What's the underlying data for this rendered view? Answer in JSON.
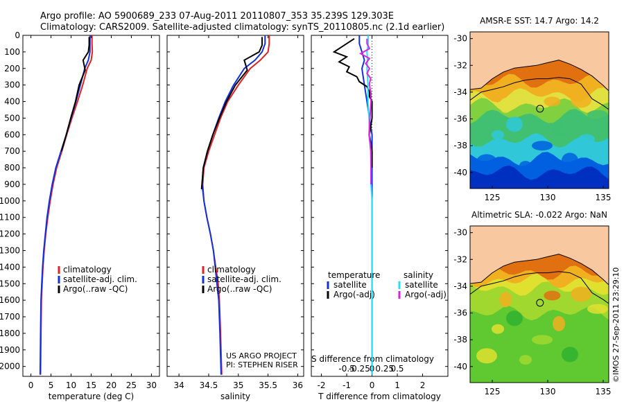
{
  "header": {
    "line1": "Argo profile: AO 5900689_233 07-Aug-2011 20110807_353 35.239S 129.303E",
    "line2": "Climatology: CARS2009. Satellite-adjusted climatology: synTS_20110805.nc (2.1d earlier)"
  },
  "credits": {
    "project": "US ARGO PROJECT",
    "pi": "PI: STEPHEN RISER",
    "stamp": "©IMOS 27-Sep-2011 23:29:10"
  },
  "colors": {
    "climatology": "#e02020",
    "satellite": "#1030e0",
    "argo": "#000000",
    "sat_salinity": "#20e0ff",
    "argo_salinity": "#e020e0",
    "land": "#f8c8a0"
  },
  "chart_data": [
    {
      "id": "temperature",
      "type": "line",
      "xlabel": "temperature (deg C)",
      "xlim": [
        -2,
        32
      ],
      "xticks": [
        0,
        5,
        10,
        15,
        20,
        25,
        30
      ],
      "xtick_labels": [
        "0",
        "5",
        "10",
        "15",
        "20",
        "25",
        "30"
      ],
      "ylim": [
        0,
        2060
      ],
      "yticks": [
        0,
        100,
        200,
        300,
        400,
        500,
        600,
        700,
        800,
        900,
        1000,
        1100,
        1200,
        1300,
        1400,
        1500,
        1600,
        1700,
        1800,
        1900,
        2000
      ],
      "ytick_labels": [
        "0",
        "100",
        "200",
        "300",
        "400",
        "500",
        "600",
        "700",
        "800",
        "900",
        "1000",
        "1100",
        "1200",
        "1300",
        "1400",
        "1500",
        "1600",
        "1700",
        "1800",
        "1900",
        "2000"
      ],
      "legend": [
        "climatology",
        "satellite-adj. clim.",
        "Argo(..raw -QC)"
      ],
      "series": [
        {
          "name": "climatology",
          "color": "#e02020",
          "x": [
            15.2,
            15.2,
            15.3,
            15.0,
            14.0,
            12.9,
            11.6,
            10.2,
            8.9,
            7.7,
            6.4,
            5.5,
            4.8,
            4.2,
            3.7,
            3.3,
            3.0,
            2.8,
            2.6,
            2.5,
            2.4
          ],
          "depth": [
            0,
            50,
            100,
            150,
            200,
            300,
            400,
            500,
            600,
            700,
            800,
            900,
            1000,
            1100,
            1200,
            1300,
            1400,
            1500,
            1600,
            1800,
            2050
          ]
        },
        {
          "name": "satellite-adj. clim.",
          "color": "#1030e0",
          "x": [
            14.7,
            14.7,
            14.7,
            14.3,
            13.4,
            12.3,
            11.2,
            10.0,
            8.8,
            7.5,
            6.2,
            5.3,
            4.6,
            4.0,
            3.6,
            3.2,
            2.9,
            2.7,
            2.5,
            2.4,
            2.3
          ],
          "depth": [
            0,
            50,
            100,
            150,
            200,
            300,
            400,
            500,
            600,
            700,
            800,
            900,
            1000,
            1100,
            1200,
            1300,
            1400,
            1500,
            1600,
            1800,
            2050
          ]
        },
        {
          "name": "Argo(..raw -QC)",
          "color": "#000000",
          "x": [
            14.5,
            14.5,
            14.3,
            13.0,
            13.5,
            12.0,
            11.1,
            9.9,
            8.8,
            7.6
          ],
          "depth": [
            10,
            60,
            100,
            150,
            210,
            300,
            400,
            500,
            600,
            700
          ]
        }
      ]
    },
    {
      "id": "salinity",
      "type": "line",
      "xlabel": "salinity",
      "xlim": [
        33.8,
        36.1
      ],
      "xticks": [
        34,
        34.5,
        35,
        35.5,
        36
      ],
      "xtick_labels": [
        "34",
        "34.5",
        "35",
        "35.5",
        "36"
      ],
      "ylim": [
        0,
        2060
      ],
      "legend": [
        "climatology",
        "satellite-adj. clim.",
        "Argo(..raw -QC)"
      ],
      "series": [
        {
          "name": "climatology",
          "color": "#e02020",
          "x": [
            35.52,
            35.52,
            35.5,
            35.37,
            35.2,
            35.0,
            34.82,
            34.7,
            34.6,
            34.5,
            34.42,
            34.4,
            34.42,
            34.47,
            34.53,
            34.58,
            34.62,
            34.66,
            34.68,
            34.7,
            34.72
          ],
          "depth": [
            0,
            50,
            100,
            150,
            200,
            300,
            400,
            500,
            600,
            700,
            800,
            900,
            1000,
            1100,
            1200,
            1300,
            1400,
            1500,
            1600,
            1800,
            2050
          ]
        },
        {
          "name": "satellite-adj. clim.",
          "color": "#1030e0",
          "x": [
            35.45,
            35.45,
            35.4,
            35.28,
            35.1,
            34.92,
            34.78,
            34.67,
            34.57,
            34.48,
            34.41,
            34.39,
            34.42,
            34.47,
            34.53,
            34.58,
            34.61,
            34.64,
            34.67,
            34.69,
            34.71
          ],
          "depth": [
            0,
            50,
            100,
            150,
            200,
            300,
            400,
            500,
            600,
            700,
            800,
            900,
            1000,
            1100,
            1200,
            1300,
            1400,
            1500,
            1600,
            1800,
            2050
          ]
        },
        {
          "name": "Argo(..raw -QC)",
          "color": "#000000",
          "x": [
            35.4,
            35.4,
            35.35,
            35.1,
            35.15,
            34.95,
            34.8,
            34.68,
            34.57,
            34.48,
            34.41,
            34.38
          ],
          "depth": [
            10,
            60,
            100,
            150,
            210,
            300,
            400,
            500,
            600,
            700,
            800,
            930
          ]
        }
      ]
    },
    {
      "id": "difference",
      "type": "line",
      "xlabel": "T difference from climatology",
      "toplabel": "S difference from climatology",
      "xlim": [
        -2.4,
        3.0
      ],
      "xticks": [
        -2,
        -1,
        0,
        1,
        2
      ],
      "xtick_labels": [
        "-2",
        "-1",
        "0",
        "1",
        "2"
      ],
      "sticks": [
        -1,
        -0.5,
        0,
        0.5,
        1
      ],
      "stick_labels": [
        "-0.5",
        "-0.25",
        "0",
        "0.25",
        "0.5"
      ],
      "ylim": [
        0,
        2060
      ],
      "legend_left_title": "temperature",
      "legend_right_title": "salinity",
      "legend_left": [
        "satellite",
        "Argo(-adj)"
      ],
      "legend_right": [
        "satellite",
        "Argo(-adj)"
      ],
      "series": [
        {
          "name": "T satellite",
          "color": "#1030e0",
          "x": [
            -0.5,
            -0.5,
            -0.4,
            -0.3,
            -0.4,
            -0.3,
            -0.2,
            -0.1,
            0.0,
            0.0,
            0.0,
            0.0,
            0.0,
            0.0,
            0.0,
            0.0,
            0.0
          ],
          "depth": [
            0,
            50,
            100,
            150,
            200,
            300,
            400,
            500,
            600,
            700,
            800,
            900,
            1000,
            1100,
            1200,
            1500,
            2050
          ]
        },
        {
          "name": "T Argo(-adj)",
          "color": "#000000",
          "x": [
            -0.7,
            -0.9,
            -1.2,
            -1.5,
            -1.0,
            -1.3,
            -0.9,
            -1.0,
            -0.6,
            -0.5,
            -0.2,
            -0.1,
            -0.1,
            0.0,
            0.0,
            0.0,
            -0.1,
            0.0,
            0.0
          ],
          "depth": [
            20,
            40,
            70,
            100,
            130,
            160,
            190,
            220,
            250,
            280,
            310,
            340,
            370,
            400,
            450,
            500,
            600,
            700,
            800
          ]
        },
        {
          "name": "S satellite",
          "color": "#20e0ff",
          "x": [
            -0.15,
            -0.15,
            -0.2,
            -0.18,
            -0.2,
            -0.16,
            -0.16,
            -0.12,
            -0.1,
            -0.06,
            -0.04,
            -0.04,
            0.0,
            0.0,
            0.0,
            0.0,
            0.0
          ],
          "depth": [
            0,
            50,
            100,
            150,
            200,
            300,
            400,
            500,
            600,
            700,
            800,
            900,
            1000,
            1100,
            1200,
            1500,
            2050
          ]
        },
        {
          "name": "S Argo(-adj)",
          "color": "#e020e0",
          "x": [
            -0.2,
            -0.2,
            -0.1,
            -0.45,
            -0.1,
            -0.25,
            -0.1,
            -0.2,
            -0.05,
            -0.1,
            -0.08,
            -0.04,
            -0.04,
            -0.08,
            -0.12,
            -0.04,
            -0.04,
            -0.04
          ],
          "depth": [
            20,
            50,
            80,
            110,
            140,
            170,
            200,
            230,
            260,
            290,
            320,
            350,
            400,
            500,
            600,
            700,
            800,
            900
          ]
        }
      ]
    },
    {
      "id": "sst-map",
      "type": "heatmap",
      "title": "AMSR-E SST: 14.7 Argo: 14.2",
      "xlim": [
        123,
        135.5
      ],
      "ylim": [
        -41.2,
        -29.5
      ],
      "xticks": [
        125,
        130,
        135
      ],
      "xtick_labels": [
        "125",
        "130",
        "135"
      ],
      "yticks": [
        -30,
        -32,
        -34,
        -36,
        -38,
        -40
      ],
      "ytick_labels": [
        "-30",
        "-32",
        "-34",
        "-36",
        "-38",
        "-40"
      ],
      "float_position": [
        129.3,
        -35.24
      ],
      "palette": [
        "#0030c0",
        "#0060e0",
        "#30c8d8",
        "#40c070",
        "#80d040",
        "#e0e040",
        "#f0b020",
        "#e07010"
      ],
      "bands": [
        {
          "to": -40.0,
          "level": 0
        },
        {
          "to": -39.0,
          "level": 1
        },
        {
          "to": -37.6,
          "level": 2
        },
        {
          "to": -35.8,
          "level": 3
        },
        {
          "to": -35.0,
          "level": 4
        },
        {
          "to": -34.2,
          "level": 5
        },
        {
          "to": -33.2,
          "level": 6
        },
        {
          "to": -32.3,
          "level": 7
        }
      ]
    },
    {
      "id": "sla-map",
      "type": "heatmap",
      "title": "Altimetric SLA: -0.022 Argo: NaN",
      "xlim": [
        123,
        135.5
      ],
      "ylim": [
        -41.2,
        -29.5
      ],
      "xticks": [
        125,
        130,
        135
      ],
      "xtick_labels": [
        "125",
        "130",
        "135"
      ],
      "yticks": [
        -30,
        -32,
        -34,
        -36,
        -38,
        -40
      ],
      "ytick_labels": [
        "-30",
        "-32",
        "-34",
        "-36",
        "-38",
        "-40"
      ],
      "float_position": [
        129.3,
        -35.24
      ],
      "palette": [
        "#30b030",
        "#60c830",
        "#a0d830",
        "#e0e030",
        "#f0b020",
        "#e07010",
        "#b03010"
      ],
      "bands": [
        {
          "to": -36.0,
          "level": 1
        },
        {
          "to": -34.2,
          "level": 2
        },
        {
          "to": -33.6,
          "level": 3
        },
        {
          "to": -33.0,
          "level": 4
        },
        {
          "to": -32.3,
          "level": 5
        }
      ]
    }
  ]
}
